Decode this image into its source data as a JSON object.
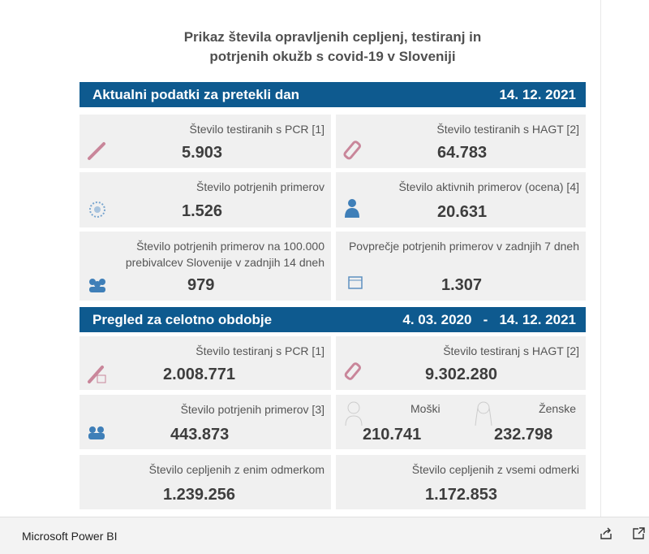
{
  "title": [
    "Prikaz števila opravljenih cepljenj, testiranj in",
    "potrjenih okužb s covid-19 v Sloveniji"
  ],
  "daily": {
    "heading": "Aktualni podatki za pretekli dan",
    "date": "14. 12. 2021",
    "cards": [
      {
        "label": "Število testiranih s PCR [1]",
        "value": "5.903"
      },
      {
        "label": "Število testiranih s HAGT [2]",
        "value": "64.783"
      },
      {
        "label": "Število potrjenih primerov",
        "value": "1.526"
      },
      {
        "label": "Število aktivnih primerov (ocena) [4]",
        "value": "20.631"
      },
      {
        "label": "Število potrjenih primerov na 100.000 prebivalcev Slovenije v zadnjih 14 dneh",
        "value": "979"
      },
      {
        "label": "Povprečje potrjenih primerov v zadnjih 7 dneh",
        "value": "1.307"
      }
    ]
  },
  "overall": {
    "heading": "Pregled za celotno obdobje",
    "date_from": "4. 03. 2020",
    "sep": "-",
    "date_to": "14. 12. 2021",
    "cards": [
      {
        "label": "Število testiranj s PCR [1]",
        "value": "2.008.771"
      },
      {
        "label": "Število testiranj s HAGT [2]",
        "value": "9.302.280"
      },
      {
        "label": "Število potrjenih primerov [3]",
        "value": "443.873"
      },
      {
        "label": "Število cepljenih z enim odmerkom",
        "value": "1.239.256"
      },
      {
        "label": "Število cepljenih z vsemi odmerki",
        "value": "1.172.853"
      }
    ],
    "men": {
      "label": "Moški",
      "value": "210.741"
    },
    "women": {
      "label": "Ženske",
      "value": "232.798"
    }
  },
  "footer": {
    "brand": "Microsoft Power BI"
  },
  "colors": {
    "banner": "#0e5a8f",
    "card": "#f0f0f0",
    "pink": "#c9869a",
    "blue": "#3f7fb8"
  }
}
